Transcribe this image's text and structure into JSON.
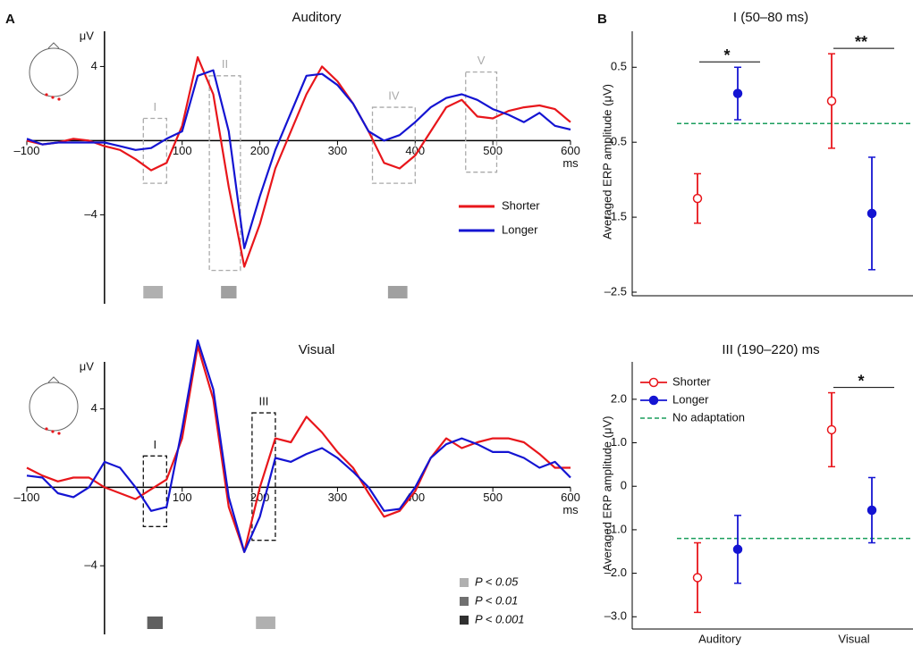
{
  "panel_labels": [
    "A",
    "B"
  ],
  "chart_data": [
    {
      "type": "line",
      "title": "Auditory",
      "y_unit": "μV",
      "x_unit": "ms",
      "xlim": [
        -100,
        600
      ],
      "xticks": [
        {
          "value": -100,
          "label": "–100"
        },
        100,
        200,
        300,
        400,
        500,
        600
      ],
      "ylim": [
        -8.8,
        5.9
      ],
      "yticks": [
        4,
        {
          "value": -4,
          "label": "–4"
        }
      ],
      "x": [
        -100,
        -80,
        -60,
        -40,
        -20,
        0,
        20,
        40,
        60,
        80,
        100,
        120,
        140,
        160,
        180,
        200,
        220,
        240,
        260,
        280,
        300,
        320,
        340,
        360,
        380,
        400,
        420,
        440,
        460,
        480,
        500,
        520,
        540,
        560,
        580,
        600
      ],
      "series": [
        {
          "name": "Shorter",
          "color": "#e8161b",
          "values": [
            0,
            -0.2,
            -0.1,
            0.1,
            0,
            -0.3,
            -0.5,
            -1.0,
            -1.6,
            -1.2,
            0.8,
            4.5,
            2.5,
            -2.5,
            -6.8,
            -4.5,
            -1.5,
            0.5,
            2.5,
            4.0,
            3.2,
            2.0,
            0.5,
            -1.2,
            -1.5,
            -0.8,
            0.5,
            1.8,
            2.2,
            1.3,
            1.2,
            1.6,
            1.8,
            1.9,
            1.7,
            1.0
          ]
        },
        {
          "name": "Longer",
          "color": "#1414d2",
          "values": [
            0.1,
            -0.2,
            -0.1,
            -0.1,
            -0.1,
            -0.1,
            -0.3,
            -0.5,
            -0.4,
            0.1,
            0.5,
            3.5,
            3.8,
            0.5,
            -5.8,
            -3.0,
            -0.5,
            1.5,
            3.5,
            3.6,
            3.0,
            2.0,
            0.5,
            0,
            0.3,
            1.0,
            1.8,
            2.3,
            2.5,
            2.2,
            1.7,
            1.4,
            1.0,
            1.5,
            0.8,
            0.6
          ]
        }
      ],
      "windows": [
        {
          "label": "I",
          "x": [
            50,
            80
          ],
          "y": [
            -2.3,
            1.2
          ]
        },
        {
          "label": "II",
          "x": [
            135,
            175
          ],
          "y": [
            -7.0,
            3.5
          ]
        },
        {
          "label": "IV",
          "x": [
            345,
            400
          ],
          "y": [
            -2.3,
            1.8
          ]
        },
        {
          "label": "V",
          "x": [
            465,
            505
          ],
          "y": [
            -1.7,
            3.7
          ]
        }
      ],
      "window_color": "#aaaaaa",
      "significance_bars": [
        {
          "x": [
            50,
            75
          ],
          "color": "#b0b0b0"
        },
        {
          "x": [
            150,
            170
          ],
          "color": "#a0a0a0"
        },
        {
          "x": [
            365,
            390
          ],
          "color": "#a0a0a0"
        }
      ]
    },
    {
      "type": "line",
      "title": "Visual",
      "y_unit": "μV",
      "x_unit": "ms",
      "xlim": [
        -100,
        600
      ],
      "xticks": [
        {
          "value": -100,
          "label": "–100"
        },
        100,
        200,
        300,
        400,
        500,
        600
      ],
      "ylim": [
        -7.5,
        6.4
      ],
      "yticks": [
        4,
        {
          "value": -4,
          "label": "–4"
        }
      ],
      "x": [
        -100,
        -80,
        -60,
        -40,
        -20,
        0,
        20,
        40,
        60,
        80,
        100,
        120,
        140,
        160,
        180,
        200,
        220,
        240,
        260,
        280,
        300,
        320,
        340,
        360,
        380,
        400,
        420,
        440,
        460,
        480,
        500,
        520,
        540,
        560,
        580,
        600
      ],
      "series": [
        {
          "name": "Shorter",
          "color": "#e8161b",
          "values": [
            1,
            0.6,
            0.3,
            0.5,
            0.5,
            0,
            -0.3,
            -0.6,
            -0.1,
            0.4,
            2.5,
            7.2,
            4.5,
            -1.0,
            -3.3,
            0,
            2.5,
            2.3,
            3.6,
            2.8,
            1.8,
            1.0,
            -0.3,
            -1.5,
            -1.2,
            -0.2,
            1.5,
            2.5,
            2.0,
            2.3,
            2.5,
            2.5,
            2.3,
            1.7,
            1.0,
            1.0
          ]
        },
        {
          "name": "Longer",
          "color": "#1414d2",
          "values": [
            0.6,
            0.5,
            -0.3,
            -0.5,
            0,
            1.3,
            1.0,
            0,
            -1.2,
            -1.0,
            3,
            7.5,
            5,
            -0.5,
            -3.3,
            -1.5,
            1.5,
            1.3,
            1.7,
            2.0,
            1.5,
            0.8,
            0,
            -1.2,
            -1.1,
            0,
            1.5,
            2.2,
            2.5,
            2.2,
            1.8,
            1.8,
            1.5,
            1.0,
            1.3,
            0.5
          ]
        }
      ],
      "windows": [
        {
          "label": "I",
          "x": [
            50,
            80
          ],
          "y": [
            -2.0,
            1.6
          ]
        },
        {
          "label": "III",
          "x": [
            190,
            220
          ],
          "y": [
            -2.7,
            3.8
          ]
        }
      ],
      "window_color": "#111111",
      "significance_bars": [
        {
          "x": [
            55,
            75
          ],
          "color": "#606060"
        },
        {
          "x": [
            195,
            220
          ],
          "color": "#b0b0b0"
        }
      ],
      "p_legend": [
        {
          "label": "P < 0.05",
          "color": "#b0b0b0"
        },
        {
          "label": "P < 0.01",
          "color": "#707070"
        },
        {
          "label": "P < 0.001",
          "color": "#303030"
        }
      ]
    },
    {
      "type": "errorbar",
      "title": "I (50–80 ms)",
      "ylabel": "Averaged ERP amplitude (μV)",
      "categories": [
        null,
        null
      ],
      "ylim": [
        -2.5,
        0.98
      ],
      "yticks": [
        0.5,
        {
          "value": -0.5,
          "label": "–0.5"
        },
        {
          "value": -1.5,
          "label": "–1.5"
        },
        {
          "value": -2.5,
          "label": "–2.5"
        }
      ],
      "series": [
        {
          "color": "#e8161b",
          "marker": "open",
          "values": [
            -1.25,
            0.05
          ],
          "errors": [
            0.33,
            0.63
          ]
        },
        {
          "color": "#1414d2",
          "marker": "filled",
          "values": [
            0.15,
            -1.45
          ],
          "errors": [
            0.35,
            0.75
          ]
        }
      ],
      "reference": {
        "value": -0.25,
        "color": "#1a9e5c"
      },
      "significance": [
        {
          "category": 0,
          "label": "*"
        },
        {
          "category": 1,
          "label": "**"
        }
      ]
    },
    {
      "type": "errorbar",
      "title": "III (190–220) ms",
      "ylabel": "Averaged ERP amplitude (μV)",
      "categories": [
        "Auditory",
        "Visual"
      ],
      "ylim": [
        -3.2,
        2.86
      ],
      "yticks": [
        {
          "value": 2,
          "label": "2.0"
        },
        {
          "value": 1,
          "label": "1.0"
        },
        0,
        {
          "value": -1,
          "label": "–1.0"
        },
        {
          "value": -2,
          "label": "–2.0"
        },
        {
          "value": -3,
          "label": "–3.0"
        }
      ],
      "series": [
        {
          "name": "Shorter",
          "color": "#e8161b",
          "marker": "open",
          "values": [
            -2.1,
            1.3
          ],
          "errors": [
            0.8,
            0.85
          ]
        },
        {
          "name": "Longer",
          "color": "#1414d2",
          "marker": "filled",
          "values": [
            -1.45,
            -0.55
          ],
          "errors": [
            0.78,
            0.75
          ]
        }
      ],
      "reference": {
        "name": "No adaptation",
        "value": -1.2,
        "color": "#1a9e5c"
      },
      "significance": [
        {
          "category": 1,
          "label": "*"
        }
      ]
    }
  ]
}
